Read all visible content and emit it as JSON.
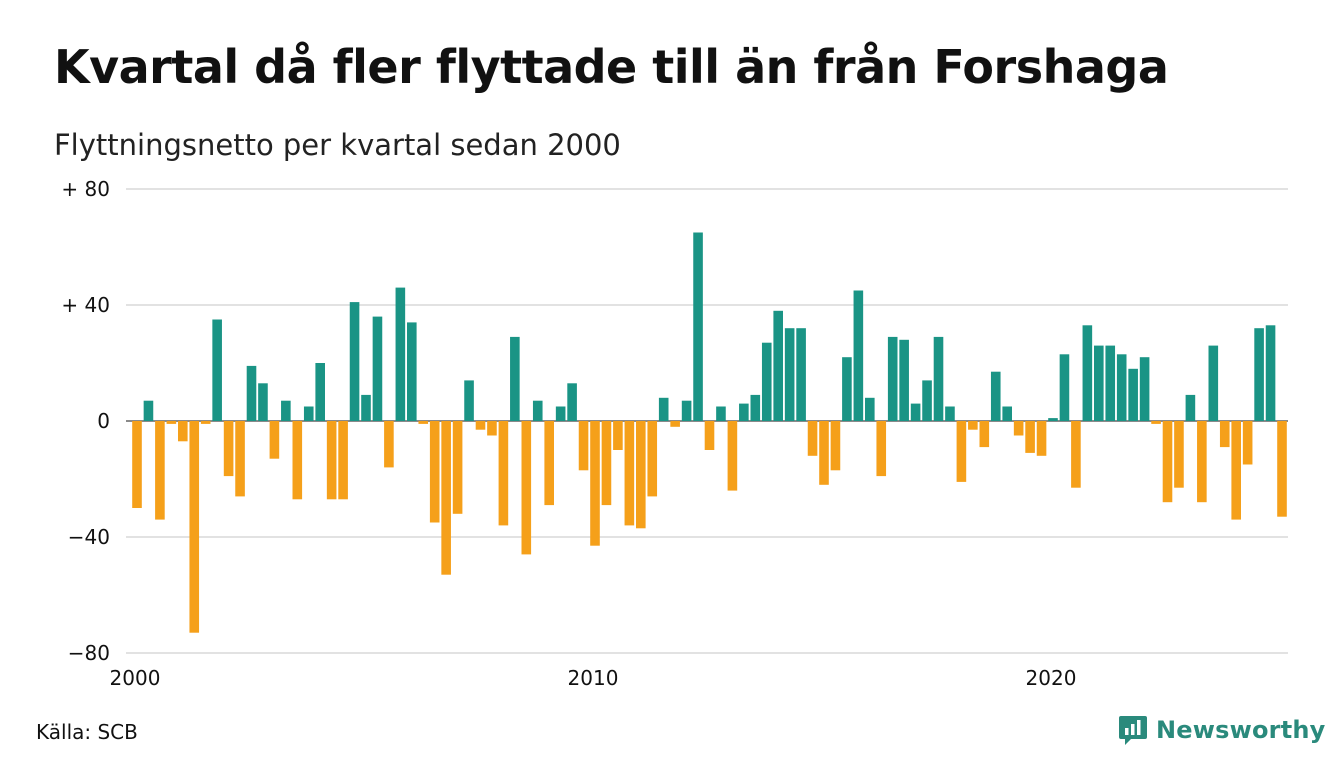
{
  "header": {
    "title": "Kvartal då fler flyttade till än från Forshaga",
    "subtitle": "Flyttningsnetto per kvartal sedan 2000"
  },
  "footer": {
    "source": "Källa: SCB",
    "brand": "Newsworthy",
    "brand_icon": "newsworthy-logo-icon"
  },
  "colors": {
    "positive": "#1a9485",
    "negative": "#f5a01a",
    "grid": "#d9d9d9",
    "brand": "#2a8a7c"
  },
  "chart_data": {
    "type": "bar",
    "title": "Kvartal då fler flyttade till än från Forshaga",
    "subtitle": "Flyttningsnetto per kvartal sedan 2000",
    "xlabel": "",
    "ylabel": "",
    "ylim": [
      -80,
      80
    ],
    "y_ticks": [
      {
        "value": 80,
        "label": "+ 80"
      },
      {
        "value": 40,
        "label": "+ 40"
      },
      {
        "value": 0,
        "label": "0"
      },
      {
        "value": -40,
        "label": "−40"
      },
      {
        "value": -80,
        "label": "−80"
      }
    ],
    "x_ticks": [
      {
        "quarter_index": 0,
        "label": "2000"
      },
      {
        "quarter_index": 40,
        "label": "2010"
      },
      {
        "quarter_index": 80,
        "label": "2020"
      }
    ],
    "start": "2000 Q1",
    "grid": true,
    "values": [
      -30,
      7,
      -34,
      -1,
      -7,
      -73,
      -1,
      35,
      -19,
      -26,
      19,
      13,
      -13,
      7,
      -27,
      5,
      20,
      -27,
      -27,
      41,
      9,
      36,
      -16,
      46,
      34,
      -1,
      -35,
      -53,
      -32,
      14,
      -3,
      -5,
      -36,
      29,
      -46,
      7,
      -29,
      5,
      13,
      -17,
      -43,
      -29,
      -10,
      -36,
      -37,
      -26,
      8,
      -2,
      7,
      65,
      -10,
      5,
      -24,
      6,
      9,
      27,
      38,
      32,
      32,
      -12,
      -22,
      -17,
      22,
      45,
      8,
      -19,
      29,
      28,
      6,
      14,
      29,
      5,
      -21,
      -3,
      -9,
      17,
      5,
      -5,
      -11,
      -12,
      1,
      23,
      -23,
      33,
      26,
      26,
      23,
      18,
      22,
      -1,
      -28,
      -23,
      9,
      -28,
      26,
      -9,
      -34,
      -15,
      32,
      33,
      -33
    ]
  }
}
